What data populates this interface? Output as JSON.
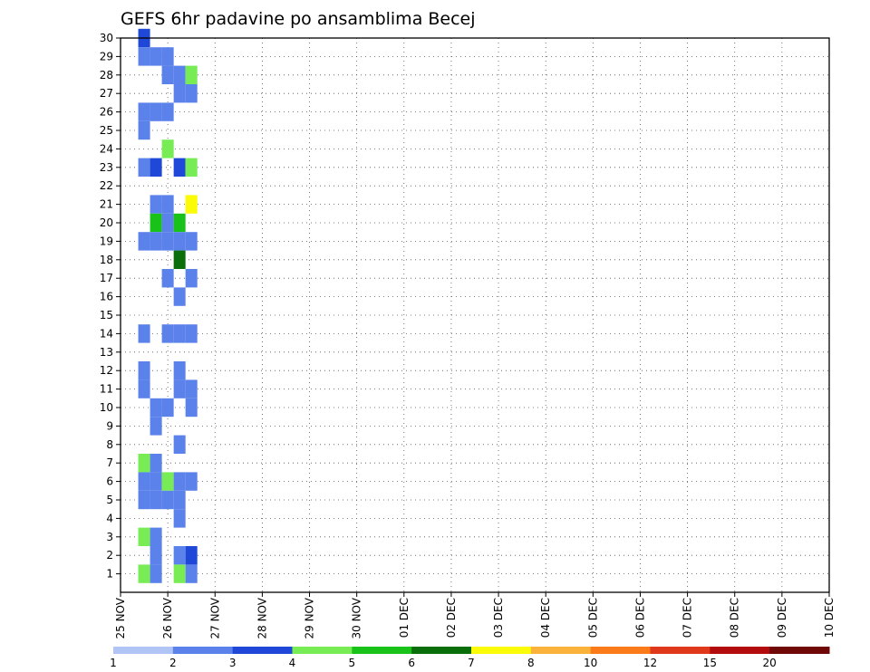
{
  "chart_data": {
    "type": "heatmap",
    "title": "GEFS 6hr padavine po ansamblima Becej",
    "xlabel": "",
    "ylabel": "",
    "x_ticks": [
      "25 NOV",
      "26 NOV",
      "27 NOV",
      "28 NOV",
      "29 NOV",
      "30 NOV",
      "01 DEC",
      "02 DEC",
      "03 DEC",
      "04 DEC",
      "05 DEC",
      "06 DEC",
      "07 DEC",
      "08 DEC",
      "09 DEC",
      "10 DEC"
    ],
    "x_range": [
      0,
      15
    ],
    "y_range": [
      0,
      30
    ],
    "y_ticks": [
      1,
      2,
      3,
      4,
      5,
      6,
      7,
      8,
      9,
      10,
      11,
      12,
      13,
      14,
      15,
      16,
      17,
      18,
      19,
      20,
      21,
      22,
      23,
      24,
      25,
      26,
      27,
      28,
      29,
      30
    ],
    "grid": true,
    "colorbar": {
      "colors": [
        "#b0c4f5",
        "#5b82ea",
        "#1f48d8",
        "#77ec55",
        "#18c218",
        "#0a6e0a",
        "#fbfb08",
        "#fbb23a",
        "#fb7a1a",
        "#e0381a",
        "#b30c0c",
        "#700808"
      ],
      "labels": [
        "1",
        "2",
        "3",
        "4",
        "5",
        "6",
        "7",
        "8",
        "10",
        "12",
        "15",
        "20"
      ]
    },
    "cells": [
      [
        0.5,
        30,
        2
      ],
      [
        0.5,
        29,
        1
      ],
      [
        0.5,
        26,
        1
      ],
      [
        0.5,
        25,
        1
      ],
      [
        0.5,
        23,
        1
      ],
      [
        0.5,
        19,
        1
      ],
      [
        0.5,
        14,
        1
      ],
      [
        0.5,
        12,
        1
      ],
      [
        0.5,
        11,
        1
      ],
      [
        0.5,
        7,
        3
      ],
      [
        0.5,
        6,
        1
      ],
      [
        0.5,
        5,
        1
      ],
      [
        0.5,
        3,
        3
      ],
      [
        0.5,
        1,
        3
      ],
      [
        0.75,
        29,
        1
      ],
      [
        0.75,
        26,
        1
      ],
      [
        0.75,
        23,
        2
      ],
      [
        0.75,
        21,
        1
      ],
      [
        0.75,
        20,
        4
      ],
      [
        0.75,
        19,
        1
      ],
      [
        0.75,
        10,
        1
      ],
      [
        0.75,
        9,
        1
      ],
      [
        0.75,
        7,
        1
      ],
      [
        0.75,
        6,
        1
      ],
      [
        0.75,
        5,
        1
      ],
      [
        0.75,
        3,
        1
      ],
      [
        0.75,
        2,
        1
      ],
      [
        0.75,
        1,
        1
      ],
      [
        1.0,
        29,
        1
      ],
      [
        1.0,
        28,
        1
      ],
      [
        1.0,
        26,
        1
      ],
      [
        1.0,
        24,
        3
      ],
      [
        1.0,
        21,
        1
      ],
      [
        1.0,
        20,
        1
      ],
      [
        1.0,
        19,
        1
      ],
      [
        1.0,
        17,
        1
      ],
      [
        1.0,
        14,
        1
      ],
      [
        1.0,
        10,
        1
      ],
      [
        1.0,
        6,
        3
      ],
      [
        1.0,
        5,
        1
      ],
      [
        1.25,
        28,
        1
      ],
      [
        1.25,
        27,
        1
      ],
      [
        1.25,
        23,
        2
      ],
      [
        1.25,
        20,
        4
      ],
      [
        1.25,
        19,
        1
      ],
      [
        1.25,
        18,
        5
      ],
      [
        1.25,
        16,
        1
      ],
      [
        1.25,
        14,
        1
      ],
      [
        1.25,
        12,
        1
      ],
      [
        1.25,
        11,
        1
      ],
      [
        1.25,
        8,
        1
      ],
      [
        1.25,
        6,
        1
      ],
      [
        1.25,
        5,
        1
      ],
      [
        1.25,
        4,
        1
      ],
      [
        1.25,
        2,
        1
      ],
      [
        1.25,
        1,
        3
      ],
      [
        1.5,
        28,
        3
      ],
      [
        1.5,
        27,
        1
      ],
      [
        1.5,
        23,
        3
      ],
      [
        1.5,
        21,
        6
      ],
      [
        1.5,
        19,
        1
      ],
      [
        1.5,
        17,
        1
      ],
      [
        1.5,
        14,
        1
      ],
      [
        1.5,
        11,
        1
      ],
      [
        1.5,
        10,
        1
      ],
      [
        1.5,
        6,
        1
      ],
      [
        1.5,
        2,
        2
      ],
      [
        1.5,
        1,
        1
      ]
    ]
  }
}
